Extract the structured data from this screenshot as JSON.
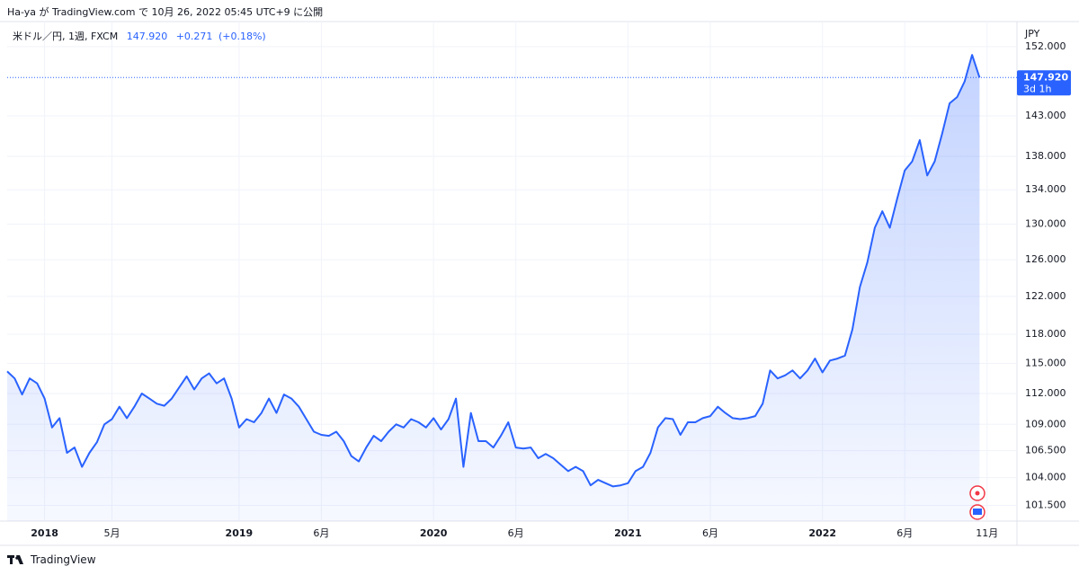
{
  "header": {
    "published": "Ha-ya が TradingView.com で 10月 26, 2022 05:45 UTC+9 に公開"
  },
  "footer": {
    "brand": "TradingView"
  },
  "chart_data": {
    "type": "area",
    "symbol": "米ドル／円, 1週, FXCM",
    "last_price": "147.920",
    "change": "+0.271",
    "change_pct": "(+0.18%)",
    "countdown": "3d 1h",
    "y_axis_label": "JPY",
    "color": "#2962ff",
    "yscale": "log",
    "grid": true,
    "values": [
      114.2,
      113.5,
      111.9,
      113.5,
      113,
      111.5,
      108.7,
      109.6,
      106.3,
      106.8,
      105,
      106.3,
      107.3,
      109,
      109.5,
      110.7,
      109.6,
      110.7,
      112,
      111.5,
      111,
      110.8,
      111.5,
      112.6,
      113.7,
      112.4,
      113.5,
      114,
      113,
      113.5,
      111.5,
      108.7,
      109.5,
      109.2,
      110.1,
      111.5,
      110.1,
      111.9,
      111.5,
      110.7,
      109.5,
      108.3,
      108,
      107.9,
      108.3,
      107.4,
      106,
      105.5,
      106.8,
      107.9,
      107.4,
      108.3,
      109,
      108.7,
      109.5,
      109.2,
      108.7,
      109.6,
      108.5,
      109.5,
      111.5,
      105,
      110.1,
      107.4,
      107.4,
      106.8,
      107.9,
      109.2,
      106.8,
      106.7,
      106.8,
      105.8,
      106.2,
      105.8,
      105.2,
      104.6,
      105,
      104.6,
      103.3,
      103.8,
      103.5,
      103.2,
      103.3,
      103.5,
      104.6,
      105,
      106.3,
      108.7,
      109.6,
      109.5,
      108,
      109.2,
      109.2,
      109.6,
      109.8,
      110.7,
      110.1,
      109.6,
      109.5,
      109.6,
      109.8,
      111,
      114.3,
      113.5,
      113.8,
      114.3,
      113.5,
      114.3,
      115.5,
      114.1,
      115.3,
      115.5,
      115.8,
      118.5,
      123,
      125.7,
      129.6,
      131.5,
      129.6,
      133,
      136.3,
      137.4,
      140,
      135.7,
      137.4,
      140.8,
      144.6,
      145.4,
      147.4,
      150.9,
      147.92
    ],
    "xlim": [
      0,
      135
    ],
    "xticks": [
      {
        "value": 5,
        "label": "2018"
      },
      {
        "value": 14,
        "label": "5月"
      },
      {
        "value": 31,
        "label": "2019"
      },
      {
        "value": 42,
        "label": "6月"
      },
      {
        "value": 57,
        "label": "2020"
      },
      {
        "value": 68,
        "label": "6月"
      },
      {
        "value": 83,
        "label": "2021"
      },
      {
        "value": 94,
        "label": "6月"
      },
      {
        "value": 109,
        "label": "2022"
      },
      {
        "value": 120,
        "label": "6月"
      },
      {
        "value": 131,
        "label": "11月"
      }
    ],
    "ylim": [
      100.1,
      154.9
    ],
    "yticks": [
      {
        "value": 101.5,
        "label": "101.500"
      },
      {
        "value": 104,
        "label": "104.000"
      },
      {
        "value": 106.5,
        "label": "106.500"
      },
      {
        "value": 109,
        "label": "109.000"
      },
      {
        "value": 112,
        "label": "112.000"
      },
      {
        "value": 115,
        "label": "115.000"
      },
      {
        "value": 118,
        "label": "118.000"
      },
      {
        "value": 122,
        "label": "122.000"
      },
      {
        "value": 126,
        "label": "126.000"
      },
      {
        "value": 130,
        "label": "130.000"
      },
      {
        "value": 134,
        "label": "134.000"
      },
      {
        "value": 138,
        "label": "138.000"
      },
      {
        "value": 143,
        "label": "143.000"
      },
      {
        "value": 152,
        "label": "152.000"
      }
    ]
  }
}
